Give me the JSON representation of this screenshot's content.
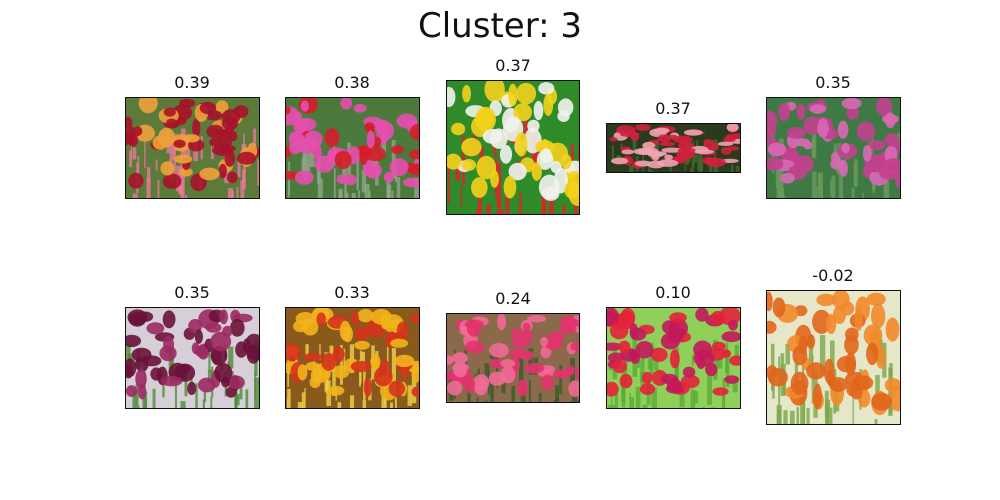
{
  "title": "Cluster: 3",
  "images": [
    {
      "score": "0.39",
      "colors": [
        "#a8122a",
        "#f0a13a",
        "#e8799a",
        "#5c7a3a"
      ]
    },
    {
      "score": "0.38",
      "colors": [
        "#d41e2a",
        "#e64fae",
        "#8fa58a",
        "#4c7a3c"
      ]
    },
    {
      "score": "0.37",
      "colors": [
        "#f3d21c",
        "#f2f2ee",
        "#e31f2c",
        "#2f8a2a"
      ]
    },
    {
      "score": "0.37",
      "colors": [
        "#d41f3c",
        "#f2a2b2",
        "#3f6a2e",
        "#2a3a1c"
      ]
    },
    {
      "score": "0.35",
      "colors": [
        "#c2408e",
        "#d968b6",
        "#6a9a5a",
        "#3f7a45"
      ]
    },
    {
      "score": "0.35",
      "colors": [
        "#6a1238",
        "#9c2a62",
        "#4f8a3a",
        "#d6cfd8"
      ]
    },
    {
      "score": "0.33",
      "colors": [
        "#f2b21c",
        "#d6331c",
        "#f0d24a",
        "#8a5a1c"
      ]
    },
    {
      "score": "0.24",
      "colors": [
        "#e2336e",
        "#f06a96",
        "#3a5a2a",
        "#8a6a4a"
      ]
    },
    {
      "score": "0.10",
      "colors": [
        "#c2185a",
        "#e3223a",
        "#5aaa3a",
        "#8fcf5a"
      ]
    },
    {
      "score": "-0.02",
      "colors": [
        "#e0661c",
        "#f28a2a",
        "#7aa84a",
        "#e6e6c8"
      ]
    }
  ]
}
